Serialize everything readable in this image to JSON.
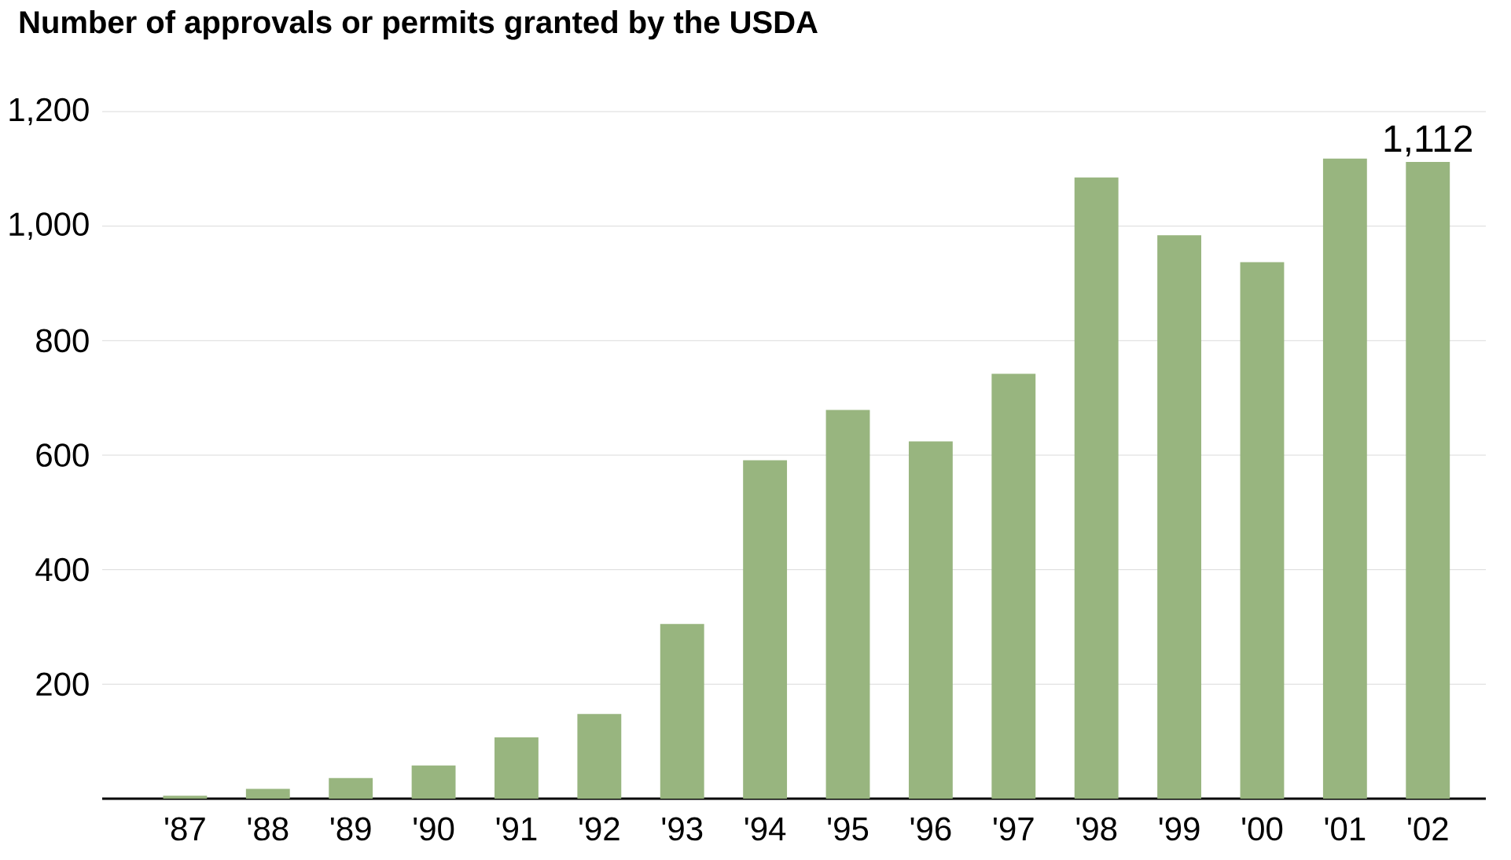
{
  "chart_data": {
    "type": "bar",
    "title": "Number of approvals or permits granted by the USDA",
    "categories": [
      "'87",
      "'88",
      "'89",
      "'90",
      "'91",
      "'92",
      "'93",
      "'94",
      "'95",
      "'96",
      "'97",
      "'98",
      "'99",
      "'00",
      "'01",
      "'02"
    ],
    "values": [
      5,
      17,
      36,
      58,
      107,
      148,
      305,
      591,
      679,
      624,
      742,
      1085,
      984,
      937,
      1118,
      1112
    ],
    "value_labels": [
      null,
      null,
      null,
      null,
      null,
      null,
      null,
      null,
      null,
      null,
      null,
      null,
      null,
      null,
      null,
      "1,112"
    ],
    "color": "#98b57f",
    "ylim": [
      0,
      1200
    ],
    "yticks": [
      200,
      400,
      600,
      800,
      {
        "value": 1000,
        "label": "1,000"
      },
      {
        "value": 1200,
        "label": "1,200"
      }
    ],
    "grid": "y"
  }
}
